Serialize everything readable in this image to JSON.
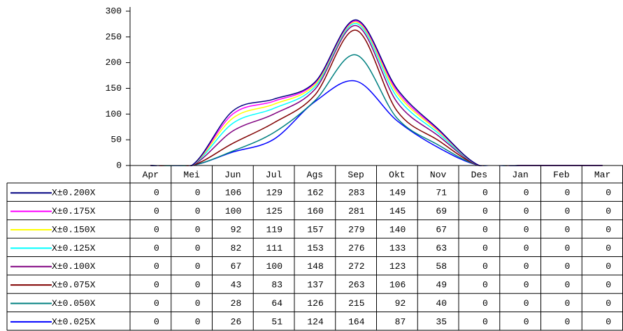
{
  "chart_data": {
    "type": "line",
    "categories": [
      "Apr",
      "Mei",
      "Jun",
      "Jul",
      "Ags",
      "Sep",
      "Okt",
      "Nov",
      "Des",
      "Jan",
      "Feb",
      "Mar"
    ],
    "ylim": [
      0,
      300
    ],
    "yticks": [
      0,
      50,
      100,
      150,
      200,
      250,
      300
    ],
    "series": [
      {
        "name": "X±0.200X",
        "color": "#000080",
        "values": [
          0,
          0,
          106,
          129,
          162,
          283,
          149,
          71,
          0,
          0,
          0,
          0
        ]
      },
      {
        "name": "X±0.175X",
        "color": "#ff00ff",
        "values": [
          0,
          0,
          100,
          125,
          160,
          281,
          145,
          69,
          0,
          0,
          0,
          0
        ]
      },
      {
        "name": "X±0.150X",
        "color": "#ffff00",
        "values": [
          0,
          0,
          92,
          119,
          157,
          279,
          140,
          67,
          0,
          0,
          0,
          0
        ]
      },
      {
        "name": "X±0.125X",
        "color": "#00ffff",
        "values": [
          0,
          0,
          82,
          111,
          153,
          276,
          133,
          63,
          0,
          0,
          0,
          0
        ]
      },
      {
        "name": "X±0.100X",
        "color": "#800080",
        "values": [
          0,
          0,
          67,
          100,
          148,
          272,
          123,
          58,
          0,
          0,
          0,
          0
        ]
      },
      {
        "name": "X±0.075X",
        "color": "#800000",
        "values": [
          0,
          0,
          43,
          83,
          137,
          263,
          106,
          49,
          0,
          0,
          0,
          0
        ]
      },
      {
        "name": "X±0.050X",
        "color": "#008080",
        "values": [
          0,
          0,
          28,
          64,
          126,
          215,
          92,
          40,
          0,
          0,
          0,
          0
        ]
      },
      {
        "name": "X±0.025X",
        "color": "#0000ff",
        "values": [
          0,
          0,
          26,
          51,
          124,
          164,
          87,
          35,
          0,
          0,
          0,
          0
        ]
      }
    ]
  }
}
